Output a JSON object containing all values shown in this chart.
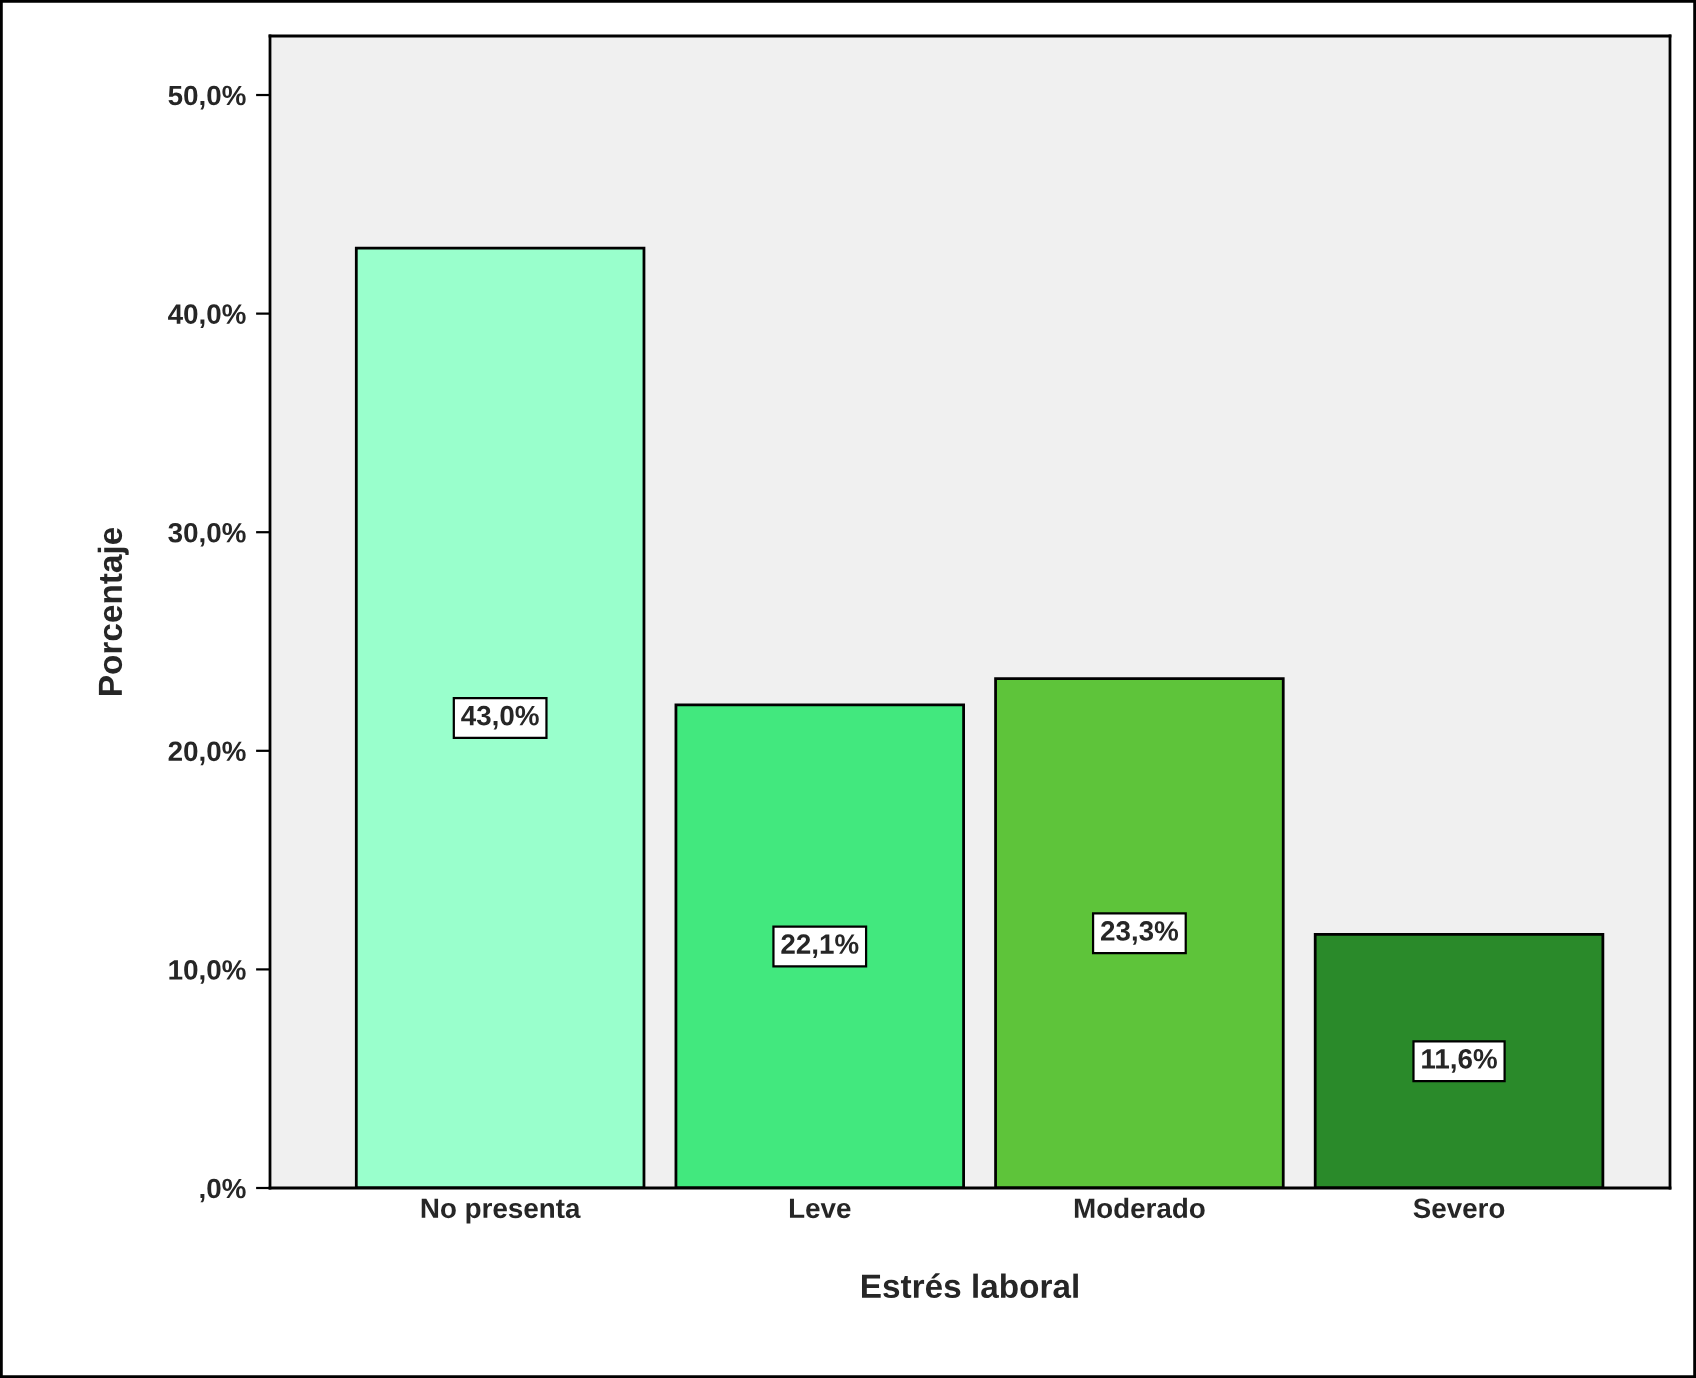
{
  "chart_data": {
    "type": "bar",
    "xlabel": "Estrés laboral",
    "ylabel": "Porcentaje",
    "categories": [
      "No presenta",
      "Leve",
      "Moderado",
      "Severo"
    ],
    "values": [
      43.0,
      22.1,
      23.3,
      11.6
    ],
    "colors": [
      "#99ffcc",
      "#42e87e",
      "#5ec43a",
      "#2a8a2a"
    ],
    "value_labels": [
      "43,0%",
      "22,1%",
      "23,3%",
      "11,6%"
    ],
    "ylim": [
      0,
      52.7
    ],
    "yticks": [
      {
        "value": 0,
        "label": ",0%"
      },
      {
        "value": 10,
        "label": "10,0%"
      },
      {
        "value": 20,
        "label": "20,0%"
      },
      {
        "value": 30,
        "label": "30,0%"
      },
      {
        "value": 40,
        "label": "40,0%"
      },
      {
        "value": 50,
        "label": "50,0%"
      }
    ],
    "grid": false,
    "legend": false
  }
}
